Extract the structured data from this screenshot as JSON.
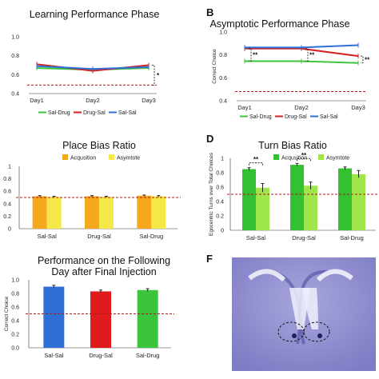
{
  "panels": {
    "B": "B",
    "D": "D",
    "F": "F"
  },
  "chart_data": [
    {
      "id": "A",
      "type": "line",
      "title": "Learning Performance Phase",
      "xlabel": "",
      "ylabel": "",
      "categories": [
        "Day1",
        "Day2",
        "Day3"
      ],
      "yticks": [
        "0.4",
        "0.6",
        "0.8",
        "1.0"
      ],
      "ylim": [
        0.4,
        1.0
      ],
      "reference_line": 0.49,
      "series": [
        {
          "name": "Sal-Drug",
          "color": "#3cc43c",
          "values": [
            0.67,
            0.65,
            0.67
          ]
        },
        {
          "name": "Drug-Sal",
          "color": "#d42020",
          "values": [
            0.71,
            0.64,
            0.7
          ]
        },
        {
          "name": "Sal-Sal",
          "color": "#2f6fd6",
          "values": [
            0.69,
            0.66,
            0.68
          ]
        }
      ],
      "annotations": [
        "*"
      ]
    },
    {
      "id": "B",
      "type": "line",
      "title": "Asymptotic Performance Phase",
      "xlabel": "",
      "ylabel": "Correct Choice",
      "categories": [
        "Day1",
        "Day2",
        "Day3"
      ],
      "yticks": [
        "0.4",
        "0.6",
        "0.8",
        "1.0"
      ],
      "ylim": [
        0.4,
        1.0
      ],
      "reference_line": 0.48,
      "series": [
        {
          "name": "Sal-Drug",
          "color": "#3cc43c",
          "values": [
            0.745,
            0.745,
            0.73
          ]
        },
        {
          "name": "Drug-Sal",
          "color": "#d42020",
          "values": [
            0.855,
            0.855,
            0.79
          ]
        },
        {
          "name": "Sal-Sal",
          "color": "#2f6fd6",
          "values": [
            0.865,
            0.865,
            0.885
          ]
        }
      ],
      "annotations": [
        "**",
        "**",
        "**"
      ]
    },
    {
      "id": "C",
      "type": "bar",
      "title": "Place Bias Ratio",
      "xlabel": "",
      "ylabel": "Preferred Place over Total Choices",
      "categories": [
        "Sal-Sal",
        "Drug-Sal",
        "Sal-Drug"
      ],
      "yticks": [
        "0",
        "0.2",
        "0.4",
        "0.6",
        "0.8",
        "1"
      ],
      "ylim": [
        0,
        1.0
      ],
      "reference_line": 0.5,
      "series": [
        {
          "name": "Acqusition",
          "color": "#f5a81c",
          "values": [
            0.52,
            0.52,
            0.53
          ]
        },
        {
          "name": "Asymtote",
          "color": "#f7e84a",
          "values": [
            0.51,
            0.51,
            0.52
          ]
        }
      ]
    },
    {
      "id": "D",
      "type": "bar",
      "title": "Turn Bias Ratio",
      "xlabel": "",
      "ylabel": "Egocentric Turns over Total Choices",
      "categories": [
        "Sal-Sal",
        "Drug-Sal",
        "Sal-Drug"
      ],
      "yticks": [
        "0",
        "0.2",
        "0.4",
        "0.6",
        "0.8",
        "1"
      ],
      "ylim": [
        0,
        1.0
      ],
      "reference_line": 0.5,
      "series": [
        {
          "name": "Acqusition",
          "color": "#33c133",
          "values": [
            0.85,
            0.91,
            0.86
          ]
        },
        {
          "name": "Asymtote",
          "color": "#9ee64a",
          "values": [
            0.59,
            0.62,
            0.78
          ]
        }
      ],
      "annotations": [
        "**",
        "**"
      ]
    },
    {
      "id": "E",
      "type": "bar",
      "title": "Performance on the Following Day after Final Injection",
      "title_lines": [
        "Performance on the Following",
        "Day after Final Injection"
      ],
      "xlabel": "",
      "ylabel": "Correct Choice",
      "categories": [
        "Sal-Sal",
        "Drug-Sal",
        "Sal-Drug"
      ],
      "yticks": [
        "0.0",
        "0.2",
        "0.4",
        "0.6",
        "0.8",
        "1.0"
      ],
      "ylim": [
        0,
        1.0
      ],
      "reference_line": 0.5,
      "series": [
        {
          "colors": [
            "#2f6fd6",
            "#e01b1b",
            "#3cc43c"
          ],
          "values": [
            0.9,
            0.83,
            0.85
          ]
        }
      ]
    }
  ]
}
